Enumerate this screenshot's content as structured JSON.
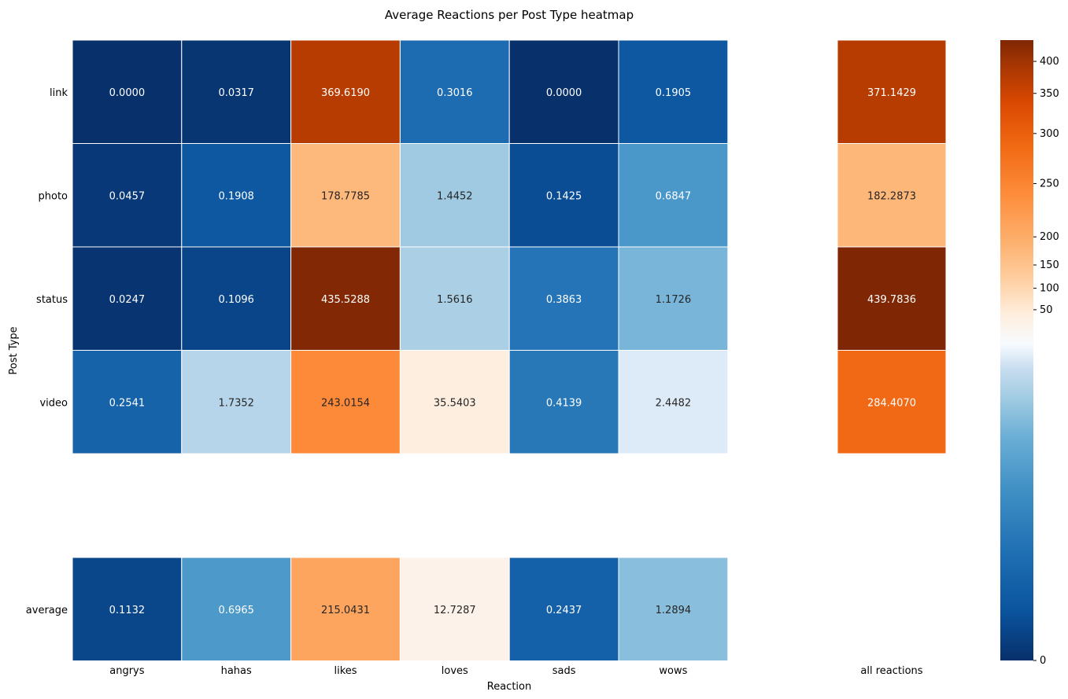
{
  "chart_data": {
    "type": "heatmap",
    "title": "Average Reactions per Post Type heatmap",
    "xlabel": "Reaction",
    "ylabel": "Post Type",
    "rows": [
      "link",
      "photo",
      "status",
      "video"
    ],
    "columns": [
      "angrys",
      "hahas",
      "likes",
      "loves",
      "sads",
      "wows"
    ],
    "values": [
      [
        0.0,
        0.0317,
        369.619,
        0.3016,
        0.0,
        0.1905
      ],
      [
        0.0457,
        0.1908,
        178.7785,
        1.4452,
        0.1425,
        0.6847
      ],
      [
        0.0247,
        0.1096,
        435.5288,
        1.5616,
        0.3863,
        1.1726
      ],
      [
        0.2541,
        1.7352,
        243.0154,
        35.5403,
        0.4139,
        2.4482
      ]
    ],
    "labels": [
      [
        "0.0000",
        "0.0317",
        "369.6190",
        "0.3016",
        "0.0000",
        "0.1905"
      ],
      [
        "0.0457",
        "0.1908",
        "178.7785",
        "1.4452",
        "0.1425",
        "0.6847"
      ],
      [
        "0.0247",
        "0.1096",
        "435.5288",
        "1.5616",
        "0.3863",
        "1.1726"
      ],
      [
        "0.2541",
        "1.7352",
        "243.0154",
        "35.5403",
        "0.4139",
        "2.4482"
      ]
    ],
    "average_row": {
      "label": "average",
      "values": [
        0.1132,
        0.6965,
        215.0431,
        12.7287,
        0.2437,
        1.2894
      ],
      "labels": [
        "0.1132",
        "0.6965",
        "215.0431",
        "12.7287",
        "0.2437",
        "1.2894"
      ]
    },
    "total_column": {
      "label": "all reactions",
      "values": [
        371.1429,
        182.2873,
        439.7836,
        284.407
      ],
      "labels": [
        "371.1429",
        "182.2873",
        "439.7836",
        "284.4070"
      ]
    },
    "colorbar": {
      "range": [
        0,
        435.5288
      ],
      "colormap_low": "Blues_r",
      "colormap_high": "Oranges",
      "ticks": [
        0,
        50,
        100,
        150,
        200,
        250,
        300,
        350,
        400
      ],
      "tick_labels": [
        "0",
        "50",
        "100",
        "150",
        "200",
        "250",
        "300",
        "350",
        "400"
      ]
    },
    "grid": false,
    "legend": "right"
  }
}
